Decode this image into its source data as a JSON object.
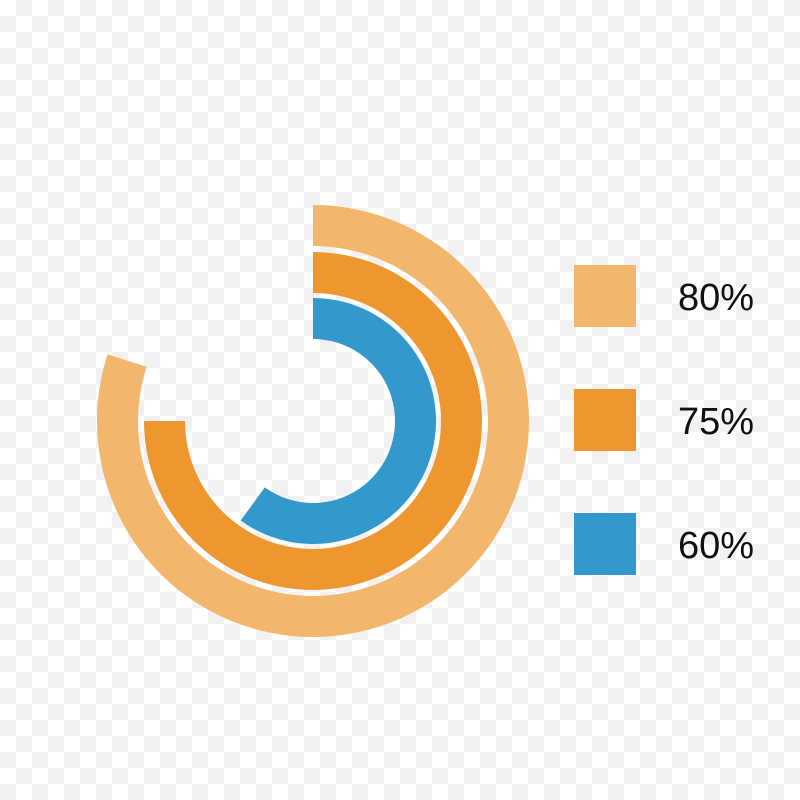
{
  "chart_data": {
    "type": "radial-bar",
    "start": "top",
    "direction": "clockwise",
    "max": 100,
    "series": [
      {
        "label": "80%",
        "value": 80,
        "color": "#F2B66C"
      },
      {
        "label": "75%",
        "value": 75,
        "color": "#EE972E"
      },
      {
        "label": "60%",
        "value": 60,
        "color": "#3398CC"
      }
    ],
    "legend": "right"
  }
}
